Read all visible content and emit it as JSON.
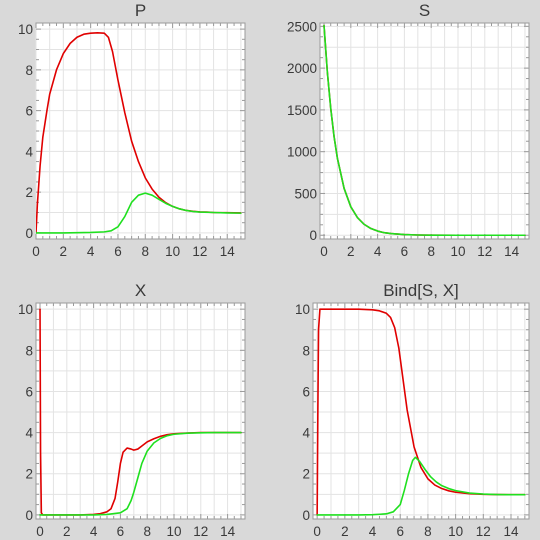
{
  "figure": {
    "background": "#d9d9d9"
  },
  "chart_data": [
    {
      "type": "line",
      "title": "P",
      "xlabel": "",
      "ylabel": "",
      "xlim": [
        0,
        15.3
      ],
      "ylim": [
        -0.3,
        10.3
      ],
      "xticks": [
        0,
        2,
        4,
        6,
        8,
        10,
        12,
        14
      ],
      "yticks": [
        0,
        2,
        4,
        6,
        8,
        10
      ],
      "series": [
        {
          "name": "red",
          "color": "#e00000",
          "x": [
            0,
            0.1,
            0.3,
            0.5,
            0.8,
            1,
            1.5,
            2,
            2.5,
            3,
            3.5,
            4,
            4.5,
            5,
            5.3,
            5.6,
            6,
            6.5,
            7,
            7.5,
            8,
            8.5,
            9,
            9.5,
            10,
            10.5,
            11,
            11.5,
            12,
            12.5,
            13,
            14,
            15
          ],
          "y": [
            0,
            1.4,
            3.3,
            4.7,
            6.0,
            6.8,
            8.0,
            8.8,
            9.3,
            9.6,
            9.75,
            9.8,
            9.82,
            9.8,
            9.6,
            8.9,
            7.5,
            5.9,
            4.5,
            3.5,
            2.7,
            2.15,
            1.75,
            1.48,
            1.3,
            1.18,
            1.1,
            1.06,
            1.03,
            1.02,
            1.0,
            0.99,
            0.98
          ]
        },
        {
          "name": "green",
          "color": "#1fe01f",
          "x": [
            0,
            1,
            2,
            3,
            4,
            5,
            5.5,
            6,
            6.5,
            7,
            7.5,
            8,
            8.5,
            9,
            9.5,
            10,
            10.5,
            11,
            11.5,
            12,
            13,
            14,
            15
          ],
          "y": [
            0,
            0,
            0,
            0.01,
            0.02,
            0.05,
            0.1,
            0.3,
            0.8,
            1.5,
            1.85,
            1.95,
            1.85,
            1.65,
            1.45,
            1.3,
            1.18,
            1.1,
            1.05,
            1.02,
            1.0,
            0.98,
            0.97
          ]
        }
      ]
    },
    {
      "type": "line",
      "title": "S",
      "xlabel": "",
      "ylabel": "",
      "xlim": [
        -0.3,
        15.3
      ],
      "ylim": [
        -45,
        2540
      ],
      "xticks": [
        0,
        2,
        4,
        6,
        8,
        10,
        12,
        14
      ],
      "yticks": [
        0,
        500,
        1000,
        1500,
        2000,
        2500
      ],
      "series": [
        {
          "name": "red",
          "color": "#e00000",
          "x": [
            0,
            0.25,
            0.5,
            0.75,
            1,
            1.5,
            2,
            2.5,
            3,
            3.5,
            4,
            4.5,
            5,
            6,
            7,
            8,
            10,
            12,
            15
          ],
          "y": [
            2510,
            1950,
            1520,
            1180,
            920,
            560,
            340,
            210,
            130,
            80,
            50,
            30,
            20,
            8,
            3,
            1,
            0,
            0,
            0
          ]
        },
        {
          "name": "green",
          "color": "#1fe01f",
          "x": [
            0,
            0.25,
            0.5,
            0.75,
            1,
            1.5,
            2,
            2.5,
            3,
            3.5,
            4,
            4.5,
            5,
            6,
            7,
            8,
            10,
            12,
            15
          ],
          "y": [
            2510,
            1950,
            1520,
            1180,
            920,
            560,
            340,
            210,
            130,
            80,
            50,
            30,
            20,
            8,
            3,
            1,
            0,
            0,
            0
          ]
        }
      ]
    },
    {
      "type": "line",
      "title": "X",
      "xlabel": "",
      "ylabel": "",
      "xlim": [
        -0.3,
        15.3
      ],
      "ylim": [
        -0.2,
        10.3
      ],
      "xticks": [
        0,
        2,
        4,
        6,
        8,
        10,
        12,
        14
      ],
      "yticks": [
        0,
        2,
        4,
        6,
        8,
        10
      ],
      "series": [
        {
          "name": "red",
          "color": "#e00000",
          "x": [
            0,
            0.04,
            0.1,
            0.2,
            1,
            2,
            3,
            4,
            4.5,
            5,
            5.3,
            5.6,
            5.8,
            6,
            6.2,
            6.5,
            6.8,
            7,
            7.3,
            7.6,
            8,
            8.5,
            9,
            9.5,
            10,
            11,
            12,
            13,
            14,
            15
          ],
          "y": [
            10,
            3,
            0.1,
            0,
            0,
            0,
            0,
            0.02,
            0.06,
            0.15,
            0.3,
            0.8,
            1.6,
            2.5,
            3.05,
            3.25,
            3.2,
            3.15,
            3.2,
            3.35,
            3.55,
            3.7,
            3.82,
            3.9,
            3.94,
            3.98,
            4.0,
            4.0,
            4.0,
            4.0
          ]
        },
        {
          "name": "green",
          "color": "#1fe01f",
          "x": [
            0,
            1,
            2,
            3,
            4,
            5,
            6,
            6.5,
            6.8,
            7,
            7.3,
            7.6,
            8,
            8.5,
            9,
            9.5,
            10,
            11,
            12,
            13,
            14,
            15
          ],
          "y": [
            0,
            0,
            0,
            0,
            0,
            0.02,
            0.1,
            0.3,
            0.7,
            1.1,
            1.8,
            2.5,
            3.1,
            3.5,
            3.72,
            3.85,
            3.92,
            3.97,
            3.99,
            4.0,
            4.0,
            4.0
          ]
        }
      ]
    },
    {
      "type": "line",
      "title": "Bind[S, X]",
      "xlabel": "",
      "ylabel": "",
      "xlim": [
        -0.3,
        15.3
      ],
      "ylim": [
        -0.2,
        10.3
      ],
      "xticks": [
        0,
        2,
        4,
        6,
        8,
        10,
        12,
        14
      ],
      "yticks": [
        0,
        2,
        4,
        6,
        8,
        10
      ],
      "series": [
        {
          "name": "red",
          "color": "#e00000",
          "x": [
            0,
            0.05,
            0.1,
            0.2,
            1,
            2,
            3,
            4,
            4.5,
            5,
            5.3,
            5.6,
            5.9,
            6.2,
            6.5,
            7,
            7.5,
            8,
            8.5,
            9,
            9.5,
            10,
            11,
            12,
            13,
            14,
            15
          ],
          "y": [
            0,
            5,
            9,
            10,
            10,
            10,
            10,
            9.97,
            9.92,
            9.8,
            9.6,
            9.1,
            8.1,
            6.6,
            5.1,
            3.3,
            2.3,
            1.75,
            1.45,
            1.28,
            1.17,
            1.1,
            1.03,
            1.0,
            0.99,
            0.98,
            0.98
          ]
        },
        {
          "name": "green",
          "color": "#1fe01f",
          "x": [
            0,
            1,
            2,
            3,
            4,
            5,
            5.5,
            6,
            6.3,
            6.6,
            6.9,
            7.1,
            7.4,
            7.8,
            8.2,
            8.6,
            9,
            9.5,
            10,
            11,
            12,
            13,
            14,
            15
          ],
          "y": [
            0,
            0,
            0,
            0,
            0.01,
            0.05,
            0.15,
            0.5,
            1.2,
            2.0,
            2.65,
            2.8,
            2.6,
            2.2,
            1.85,
            1.6,
            1.42,
            1.28,
            1.18,
            1.06,
            1.01,
            0.99,
            0.98,
            0.98
          ]
        }
      ]
    }
  ]
}
